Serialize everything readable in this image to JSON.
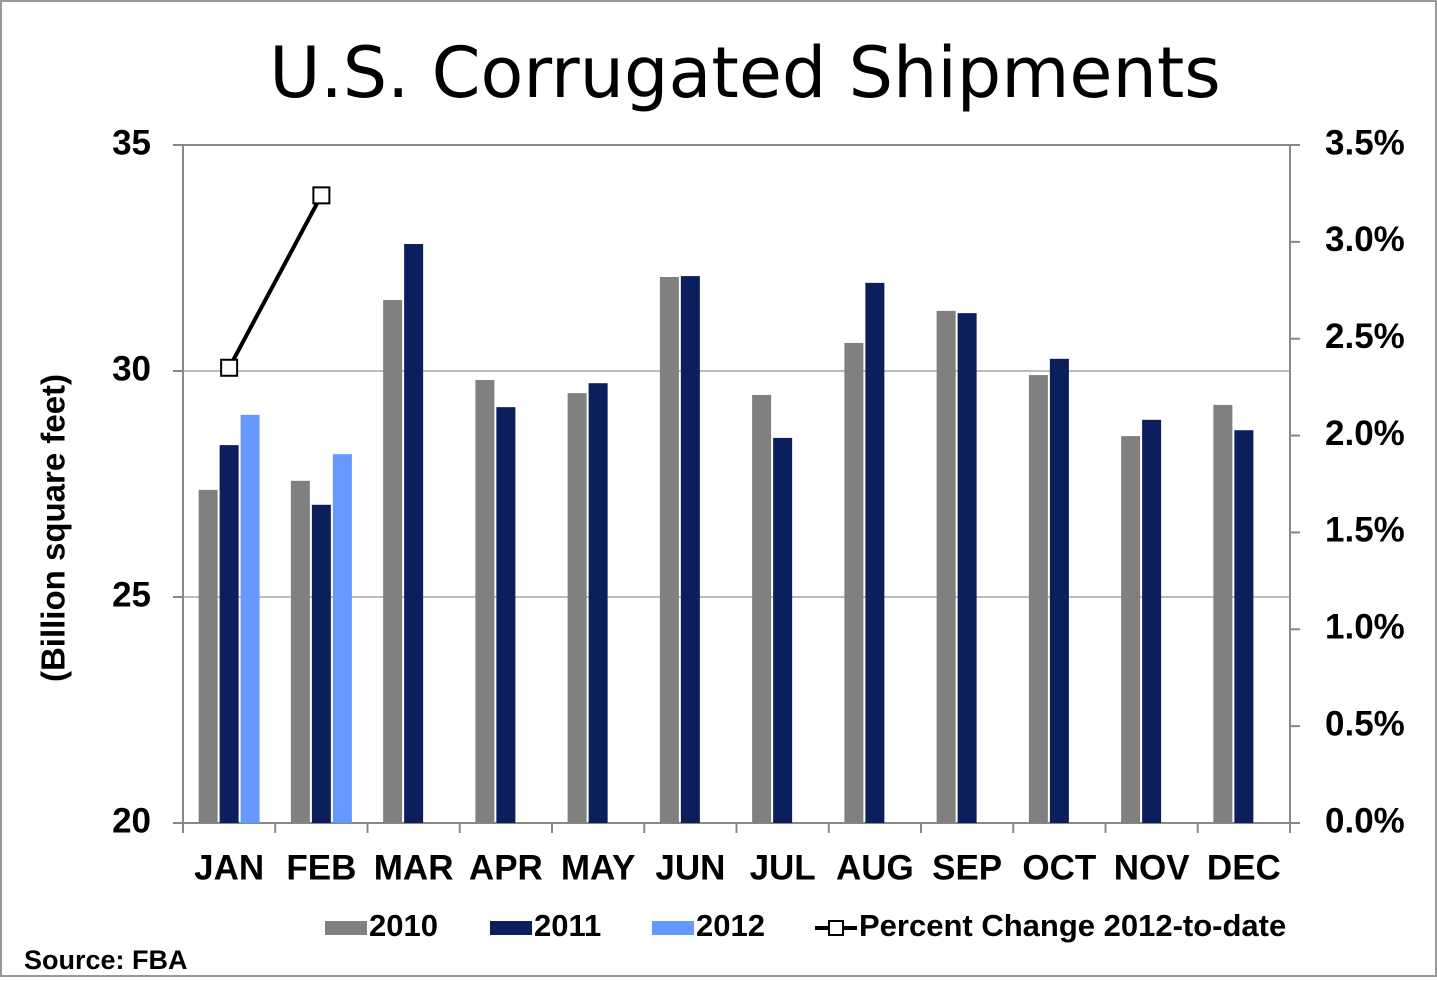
{
  "chart_data": {
    "type": "bar",
    "title": "U.S. Corrugated Shipments",
    "y_label": "(Billion square feet)",
    "source": "Source: FBA",
    "categories": [
      "JAN",
      "FEB",
      "MAR",
      "APR",
      "MAY",
      "JUN",
      "JUL",
      "AUG",
      "SEP",
      "OCT",
      "NOV",
      "DEC"
    ],
    "series": [
      {
        "name": "2010",
        "color": "#808080",
        "values": [
          27.37,
          27.57,
          31.57,
          29.8,
          29.51,
          32.08,
          29.47,
          30.62,
          31.33,
          29.91,
          28.56,
          29.25
        ]
      },
      {
        "name": "2011",
        "color": "#0a1f5c",
        "values": [
          28.36,
          27.04,
          32.81,
          29.2,
          29.73,
          32.1,
          28.52,
          31.95,
          31.28,
          30.27,
          28.92,
          28.69
        ]
      },
      {
        "name": "2012",
        "color": "#6699ff",
        "values": [
          29.03,
          28.16,
          null,
          null,
          null,
          null,
          null,
          null,
          null,
          null,
          null,
          null
        ]
      },
      {
        "name": "Percent Change 2012-to-date",
        "color": "#000000",
        "type": "line",
        "axis": "y2",
        "values": [
          2.35,
          3.24,
          null,
          null,
          null,
          null,
          null,
          null,
          null,
          null,
          null,
          null
        ]
      }
    ],
    "ylim": [
      20,
      35
    ],
    "yticks": [
      20,
      25,
      30,
      35
    ],
    "y2lim": [
      0,
      3.5
    ],
    "y2ticks": [
      {
        "value": 0,
        "label": "0.0%"
      },
      {
        "value": 0.5,
        "label": "0.5%"
      },
      {
        "value": 1,
        "label": "1.0%"
      },
      {
        "value": 1.5,
        "label": "1.5%"
      },
      {
        "value": 2,
        "label": "2.0%"
      },
      {
        "value": 2.5,
        "label": "2.5%"
      },
      {
        "value": 3,
        "label": "3.0%"
      },
      {
        "value": 3.5,
        "label": "3.5%"
      }
    ],
    "grid": true,
    "legend": "bottom"
  }
}
